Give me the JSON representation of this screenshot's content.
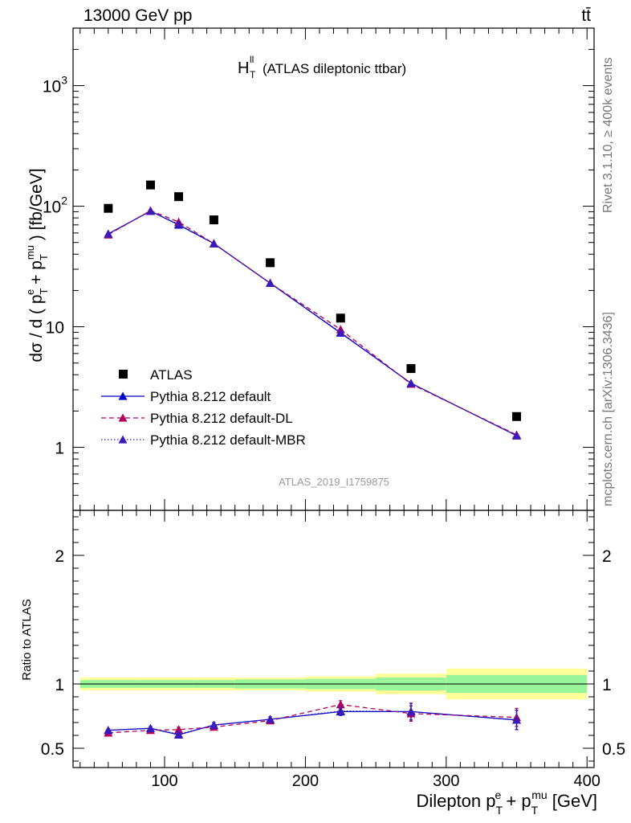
{
  "header": {
    "energy_label": "13000 GeV pp",
    "process_label": "tt̄"
  },
  "side_labels": {
    "rivet": "Rivet 3.1.10, ≥ 400k events",
    "mcplots": "mcplots.cern.ch [arXiv:1306.3436]"
  },
  "chart_data": {
    "type": "line",
    "title": "H_T^ll (ATLAS dileptonic ttbar)",
    "title_main": "H",
    "title_sup": "ll",
    "title_sub": "T",
    "title_rest": "(ATLAS dileptonic ttbar)",
    "analysis_label": "ATLAS_2019_I1759875",
    "xlabel": "Dilepton p_T^e + p_T^mu [GeV]",
    "ylabel": "dσ / d ( p_T^e + p_T^mu ) [fb/GeV]",
    "ratio_ylabel": "Ratio to ATLAS",
    "xlim": [
      35,
      405
    ],
    "ylim": [
      0.3,
      3000
    ],
    "yscale": "log",
    "ratio_ylim": [
      0.35,
      2.35
    ],
    "x_ticks": [
      100,
      200,
      300,
      400
    ],
    "x_tick_labels": [
      "100",
      "200",
      "300",
      "400"
    ],
    "y_tick_labels": [
      "1",
      "10",
      "10^2",
      "10^3"
    ],
    "ratio_ticks": [
      0.5,
      1,
      2
    ],
    "ratio_tick_labels": [
      "0.5",
      "1",
      "2"
    ],
    "bins": [
      [
        40,
        80
      ],
      [
        80,
        100
      ],
      [
        100,
        120
      ],
      [
        120,
        150
      ],
      [
        150,
        200
      ],
      [
        200,
        250
      ],
      [
        250,
        300
      ],
      [
        300,
        400
      ]
    ],
    "x": [
      60,
      90,
      110,
      135,
      175,
      225,
      275,
      350
    ],
    "data": {
      "name": "ATLAS",
      "values": [
        96,
        150,
        120,
        77,
        34,
        11.8,
        4.5,
        1.8
      ],
      "ratio_band_inner": [
        0.03,
        0.03,
        0.03,
        0.03,
        0.035,
        0.04,
        0.05,
        0.07
      ],
      "ratio_band_outer": [
        0.05,
        0.05,
        0.05,
        0.05,
        0.05,
        0.06,
        0.08,
        0.12
      ]
    },
    "series": [
      {
        "name": "Pythia 8.212 default",
        "color": "#0000cc",
        "dash": "solid",
        "values": [
          59,
          91,
          70,
          49,
          23,
          8.9,
          3.4,
          1.25
        ],
        "ratio": [
          0.64,
          0.655,
          0.605,
          0.68,
          0.725,
          0.785,
          0.785,
          0.72
        ],
        "ratio_err": [
          0.01,
          0.015,
          0.015,
          0.02,
          0.02,
          0.03,
          0.065,
          0.075
        ]
      },
      {
        "name": "Pythia 8.212 default-DL",
        "color": "#b0005e",
        "dash": "dashed",
        "values": [
          58,
          92,
          74,
          49,
          23,
          9.5,
          3.35,
          1.27
        ],
        "ratio": [
          0.62,
          0.64,
          0.645,
          0.665,
          0.715,
          0.84,
          0.77,
          0.74
        ],
        "ratio_err": [
          0.01,
          0.015,
          0.02,
          0.02,
          0.02,
          0.03,
          0.06,
          0.07
        ]
      },
      {
        "name": "Pythia 8.212 default-MBR",
        "color": "#3a1ab8",
        "dash": "dotted",
        "values": [
          59,
          91,
          71,
          49,
          23,
          9.0,
          3.4,
          1.25
        ],
        "ratio": [
          0.64,
          0.655,
          0.61,
          0.68,
          0.725,
          0.79,
          0.785,
          0.72
        ],
        "ratio_err": [
          0.01,
          0.015,
          0.015,
          0.02,
          0.02,
          0.03,
          0.065,
          0.075
        ]
      }
    ],
    "legend_position": "bottom-left"
  }
}
